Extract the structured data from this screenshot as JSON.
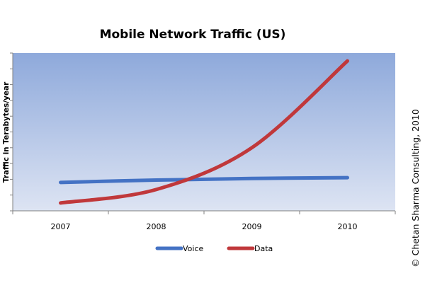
{
  "chart_data": {
    "type": "line",
    "title": "Mobile Network Traffic (US)",
    "xlabel": "",
    "ylabel": "Traffic in Terabytes/year",
    "categories": [
      "2007",
      "2008",
      "2009",
      "2010"
    ],
    "ylim": [
      0,
      10
    ],
    "grid": false,
    "legend_position": "bottom",
    "series": [
      {
        "name": "Voice",
        "color": "#4472C4",
        "values": [
          1.8,
          1.95,
          2.05,
          2.1
        ]
      },
      {
        "name": "Data",
        "color": "#C0383B",
        "values": [
          0.5,
          1.35,
          4.0,
          9.5
        ]
      }
    ]
  },
  "copyright": "© Chetan Sharma Consulting, 2010",
  "colors": {
    "plot_gradient_top": "#8EA9DB",
    "plot_gradient_bottom": "#DDE4F3"
  }
}
